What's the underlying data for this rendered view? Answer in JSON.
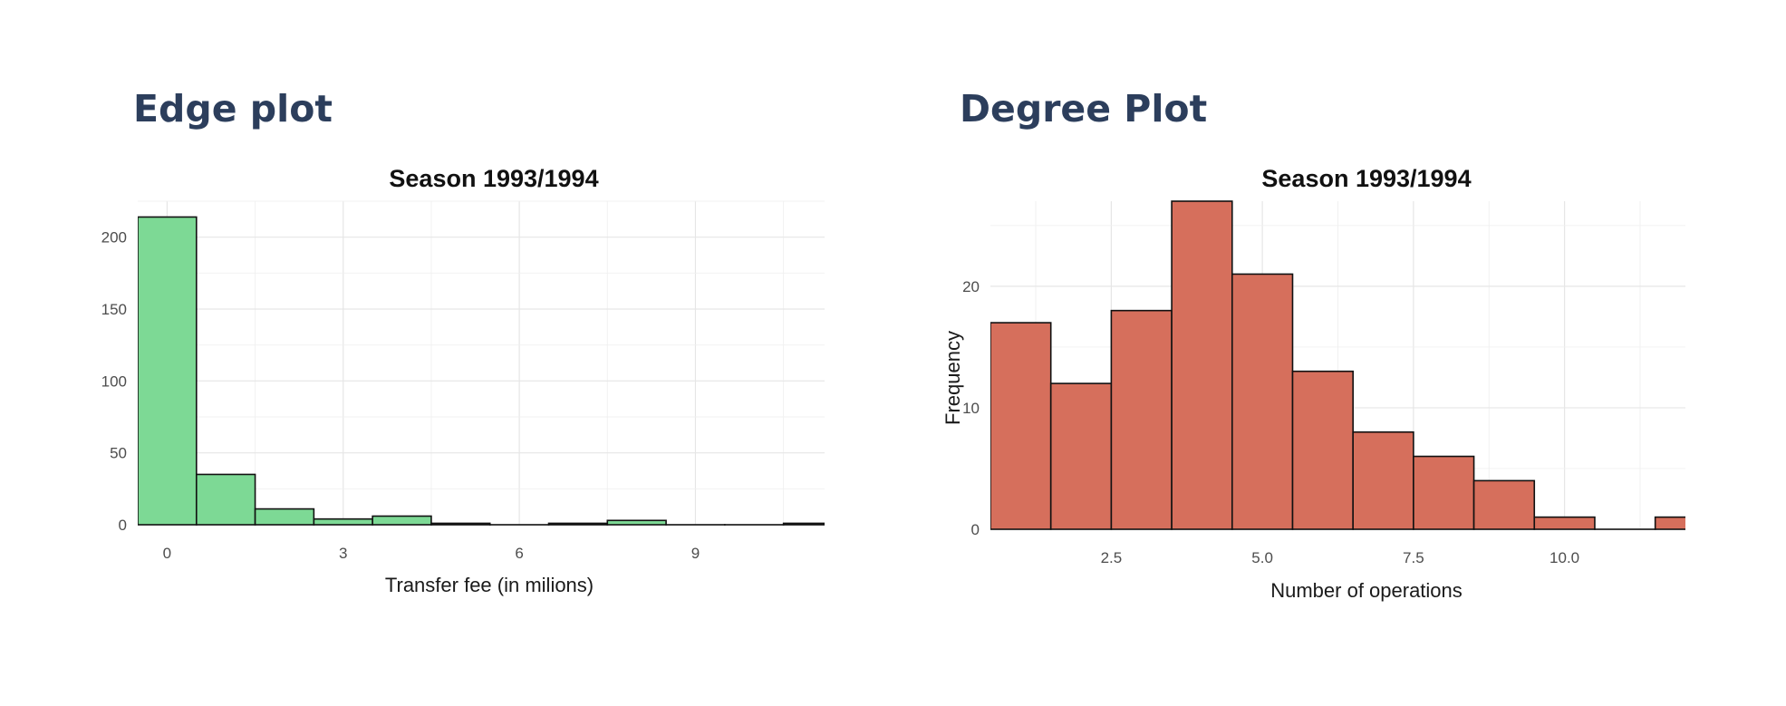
{
  "headings": {
    "left": "Edge plot",
    "right": "Degree Plot"
  },
  "chart_data": [
    {
      "type": "bar",
      "title": "Season 1993/1994",
      "xlabel": "Transfer fee (in milions)",
      "ylabel": "",
      "fill": "#7dd995",
      "xlim": [
        -0.5,
        11.2
      ],
      "ylim": [
        0,
        225
      ],
      "xticks": [
        0,
        3,
        6,
        9
      ],
      "yticks": [
        0,
        50,
        100,
        150,
        200
      ],
      "bins": [
        {
          "x0": -0.5,
          "x1": 0.5,
          "value": 214
        },
        {
          "x0": 0.5,
          "x1": 1.5,
          "value": 35
        },
        {
          "x0": 1.5,
          "x1": 2.5,
          "value": 11
        },
        {
          "x0": 2.5,
          "x1": 3.5,
          "value": 4
        },
        {
          "x0": 3.5,
          "x1": 4.5,
          "value": 6
        },
        {
          "x0": 4.5,
          "x1": 5.5,
          "value": 1
        },
        {
          "x0": 5.5,
          "x1": 6.5,
          "value": 0
        },
        {
          "x0": 6.5,
          "x1": 7.5,
          "value": 1
        },
        {
          "x0": 7.5,
          "x1": 8.5,
          "value": 3
        },
        {
          "x0": 8.5,
          "x1": 9.5,
          "value": 0
        },
        {
          "x0": 9.5,
          "x1": 10.5,
          "value": 0
        },
        {
          "x0": 10.5,
          "x1": 11.5,
          "value": 1
        }
      ]
    },
    {
      "type": "bar",
      "title": "Season 1993/1994",
      "xlabel": "Number of operations",
      "ylabel": "Frequency",
      "fill": "#d66f5c",
      "xlim": [
        0.5,
        12.0
      ],
      "ylim": [
        0,
        27
      ],
      "xticks": [
        "2.5",
        "5.0",
        "7.5",
        "10.0"
      ],
      "yticks": [
        0,
        10,
        20
      ],
      "bins": [
        {
          "x0": 0.5,
          "x1": 1.5,
          "value": 17
        },
        {
          "x0": 1.5,
          "x1": 2.5,
          "value": 12
        },
        {
          "x0": 2.5,
          "x1": 3.5,
          "value": 18
        },
        {
          "x0": 3.5,
          "x1": 4.5,
          "value": 27
        },
        {
          "x0": 4.5,
          "x1": 5.5,
          "value": 21
        },
        {
          "x0": 5.5,
          "x1": 6.5,
          "value": 13
        },
        {
          "x0": 6.5,
          "x1": 7.5,
          "value": 8
        },
        {
          "x0": 7.5,
          "x1": 8.5,
          "value": 6
        },
        {
          "x0": 8.5,
          "x1": 9.5,
          "value": 4
        },
        {
          "x0": 9.5,
          "x1": 10.5,
          "value": 1
        },
        {
          "x0": 10.5,
          "x1": 11.5,
          "value": 0
        },
        {
          "x0": 11.5,
          "x1": 12.5,
          "value": 1
        }
      ]
    }
  ]
}
